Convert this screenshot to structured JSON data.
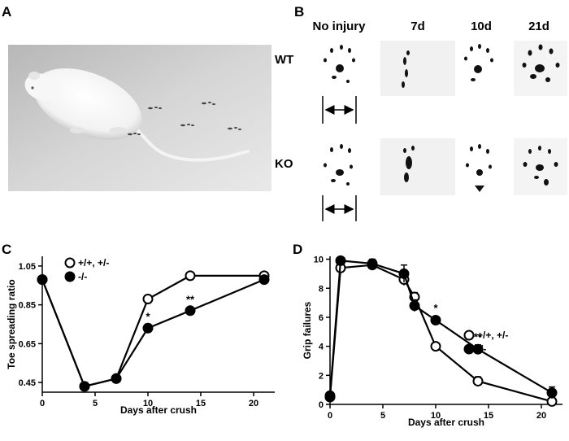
{
  "panels": {
    "A": {
      "label": "A"
    },
    "B": {
      "label": "B",
      "columns": [
        "No injury",
        "7d",
        "10d",
        "21d"
      ],
      "rows": [
        "WT",
        "KO"
      ]
    },
    "C": {
      "label": "C"
    },
    "D": {
      "label": "D"
    }
  },
  "chart_data": [
    {
      "type": "line",
      "panel": "C",
      "title": "",
      "xlabel": "Days after crush",
      "ylabel": "Toe spreading ratio",
      "xlim": [
        0,
        22
      ],
      "ylim": [
        0.4,
        1.1
      ],
      "xticks": [
        0,
        5,
        10,
        15,
        20
      ],
      "xtick_labels": [
        "0",
        "5",
        "10",
        "15",
        "20"
      ],
      "yticks": [
        0.45,
        0.65,
        0.85,
        1.05
      ],
      "ytick_labels": [
        "0.45",
        "0.65",
        "0.85",
        "1.05"
      ],
      "legend_position": "top-left",
      "series": [
        {
          "name": "+/+, +/-",
          "marker": "open-circle",
          "x": [
            0,
            4,
            7,
            10,
            14,
            21
          ],
          "values": [
            0.98,
            0.43,
            0.47,
            0.88,
            1.0,
            1.0
          ],
          "errors": [
            0.01,
            0.01,
            0.01,
            0.02,
            0.01,
            0.01
          ]
        },
        {
          "name": "-/-",
          "marker": "filled-circle",
          "x": [
            0,
            4,
            7,
            10,
            14,
            21
          ],
          "values": [
            0.98,
            0.43,
            0.47,
            0.73,
            0.82,
            0.98
          ],
          "errors": [
            0.01,
            0.01,
            0.01,
            0.02,
            0.01,
            0.01
          ]
        }
      ],
      "annotations": [
        {
          "x": 10,
          "y": 0.77,
          "text": "*"
        },
        {
          "x": 14,
          "y": 0.86,
          "text": "**"
        }
      ]
    },
    {
      "type": "line",
      "panel": "D",
      "title": "",
      "xlabel": "Days after crush",
      "ylabel": "Grip failures",
      "xlim": [
        0,
        22
      ],
      "ylim": [
        0,
        10.2
      ],
      "xticks": [
        0,
        5,
        10,
        15,
        20
      ],
      "xtick_labels": [
        "0",
        "5",
        "10",
        "15",
        "20"
      ],
      "yticks": [
        0,
        2,
        4,
        6,
        8,
        10
      ],
      "ytick_labels": [
        "0",
        "2",
        "4",
        "6",
        "8",
        "10"
      ],
      "legend_position": "middle-right",
      "series": [
        {
          "name": "+/+, +/-",
          "marker": "open-circle",
          "x": [
            0,
            1,
            4,
            7,
            8,
            10,
            14,
            21
          ],
          "values": [
            0.5,
            9.4,
            9.6,
            8.6,
            7.4,
            4.0,
            1.6,
            0.2
          ],
          "errors": [
            0.1,
            0.2,
            0.2,
            0.4,
            0.3,
            0.2,
            0.3,
            0.2
          ]
        },
        {
          "name": "-/-",
          "marker": "filled-circle",
          "x": [
            0,
            1,
            4,
            7,
            8,
            10,
            14,
            21
          ],
          "values": [
            0.6,
            9.9,
            9.7,
            9.0,
            6.8,
            5.8,
            3.8,
            0.8
          ],
          "errors": [
            0.1,
            0.1,
            0.3,
            0.6,
            0.4,
            0.2,
            0.3,
            0.4
          ]
        }
      ],
      "annotations": [
        {
          "x": 10,
          "y": 6.4,
          "text": "*"
        },
        {
          "x": 14,
          "y": 4.4,
          "text": "**"
        }
      ]
    }
  ]
}
